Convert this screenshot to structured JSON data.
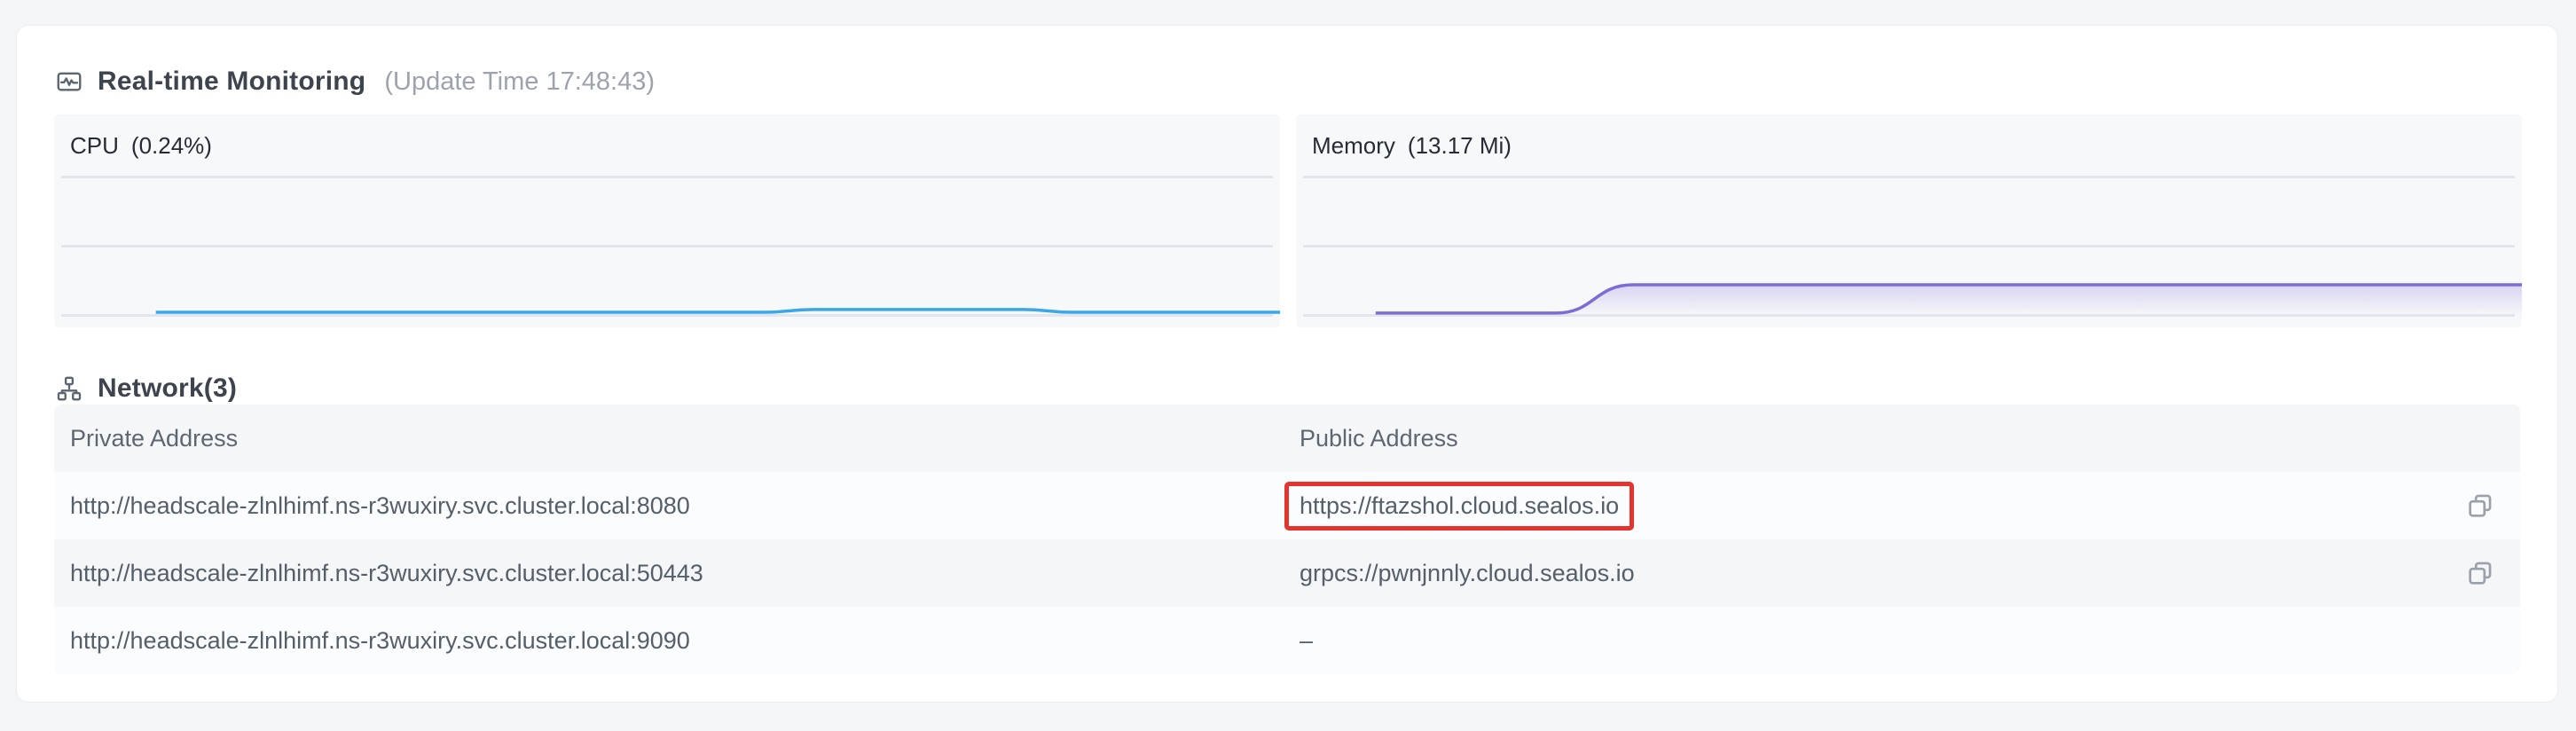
{
  "monitoring": {
    "title": "Real-time Monitoring",
    "update_time": "(Update Time 17:48:43)"
  },
  "chart_data": [
    {
      "type": "line",
      "title": "CPU",
      "value_label": "(0.24%)",
      "current_value": "0.24%",
      "line_color": "#3aa7ea",
      "fill": false,
      "grid": "horizontal-3-lines",
      "axis_labels": "none",
      "points_pct": [
        [
          8.3,
          92.9
        ],
        [
          58,
          92.9
        ],
        [
          62,
          91.6
        ],
        [
          79,
          91.6
        ],
        [
          83,
          92.9
        ],
        [
          100,
          92.9
        ]
      ],
      "baseline_pct": 93.8
    },
    {
      "type": "line",
      "title": "Memory",
      "value_label": "(13.17 Mi)",
      "current_value": "13.17 Mi",
      "line_color": "#7e6cd6",
      "fill": true,
      "fill_from": "rgba(127,109,214,0.26)",
      "fill_to": "rgba(127,109,214,0.02)",
      "grid": "horizontal-3-lines",
      "axis_labels": "none",
      "points_pct": [
        [
          6.5,
          93.3
        ],
        [
          21.2,
          93.3
        ],
        [
          27.5,
          80.0
        ],
        [
          100,
          80.0
        ]
      ],
      "baseline_pct": 93.8
    }
  ],
  "network": {
    "title": "Network(3)",
    "columns": [
      "Private Address",
      "Public Address"
    ],
    "highlight_color": "#e5332e",
    "rows": [
      {
        "private": "http://headscale-zlnlhimf.ns-r3wuxiry.svc.cluster.local:8080",
        "public": "https://ftazshol.cloud.sealos.io",
        "highlighted": true,
        "copy": true
      },
      {
        "private": "http://headscale-zlnlhimf.ns-r3wuxiry.svc.cluster.local:50443",
        "public": "grpcs://pwnjnnly.cloud.sealos.io",
        "highlighted": false,
        "copy": true
      },
      {
        "private": "http://headscale-zlnlhimf.ns-r3wuxiry.svc.cluster.local:9090",
        "public": "–",
        "highlighted": false,
        "copy": false
      }
    ]
  }
}
